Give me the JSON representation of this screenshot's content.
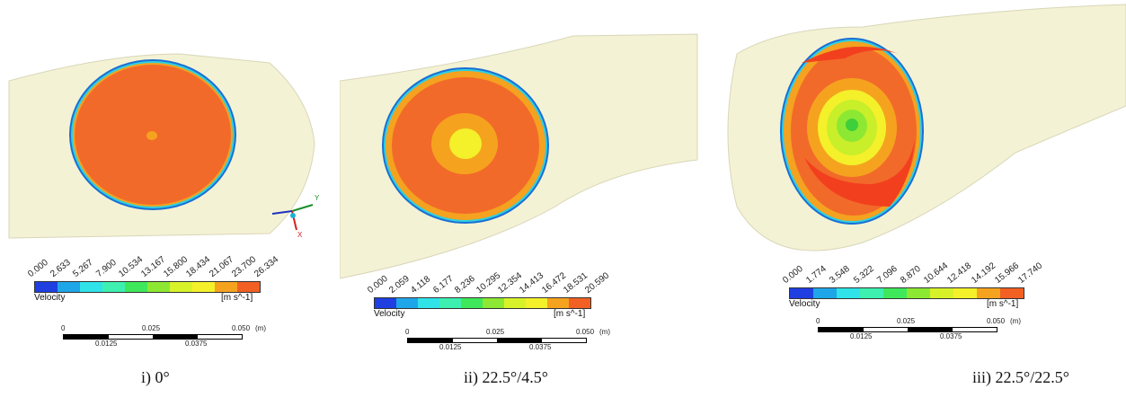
{
  "colormap": [
    "#1f3fe0",
    "#1fa6e8",
    "#2fe3e8",
    "#3ef0b0",
    "#3fe85a",
    "#8de833",
    "#d8f22a",
    "#f4f02a",
    "#f5a31f",
    "#f26024"
  ],
  "panels": [
    {
      "legend_title": "Velocity",
      "unit": "[m s^-1]",
      "ticks": [
        "0.000",
        "2.633",
        "5.267",
        "7.900",
        "10.534",
        "13.167",
        "15.800",
        "18.434",
        "21.067",
        "23.700",
        "26.334"
      ],
      "scale_labels": {
        "a": "0",
        "b": "0.025",
        "c": "0.050",
        "unit": "(m)",
        "d": "0.0125",
        "e": "0.0375"
      },
      "caption": "i)  0°"
    },
    {
      "legend_title": "Velocity",
      "unit": "[m s^-1]",
      "ticks": [
        "0.000",
        "2.059",
        "4.118",
        "6.177",
        "8.236",
        "10.295",
        "12.354",
        "14.413",
        "16.472",
        "18.531",
        "20.590"
      ],
      "scale_labels": {
        "a": "0",
        "b": "0.025",
        "c": "0.050",
        "unit": "(m)",
        "d": "0.0125",
        "e": "0.0375"
      },
      "caption": "ii) 22.5°/4.5°"
    },
    {
      "legend_title": "Velocity",
      "unit": "[m s^-1]",
      "ticks": [
        "0.000",
        "1.774",
        "3.548",
        "5.322",
        "7.096",
        "8.870",
        "10.644",
        "12.418",
        "14.192",
        "15.966",
        "17.740"
      ],
      "scale_labels": {
        "a": "0",
        "b": "0.025",
        "c": "0.050",
        "unit": "(m)",
        "d": "0.0125",
        "e": "0.0375"
      },
      "caption": "iii) 22.5°/22.5°"
    }
  ],
  "axis_triad": {
    "y": "Y",
    "x": "X"
  }
}
